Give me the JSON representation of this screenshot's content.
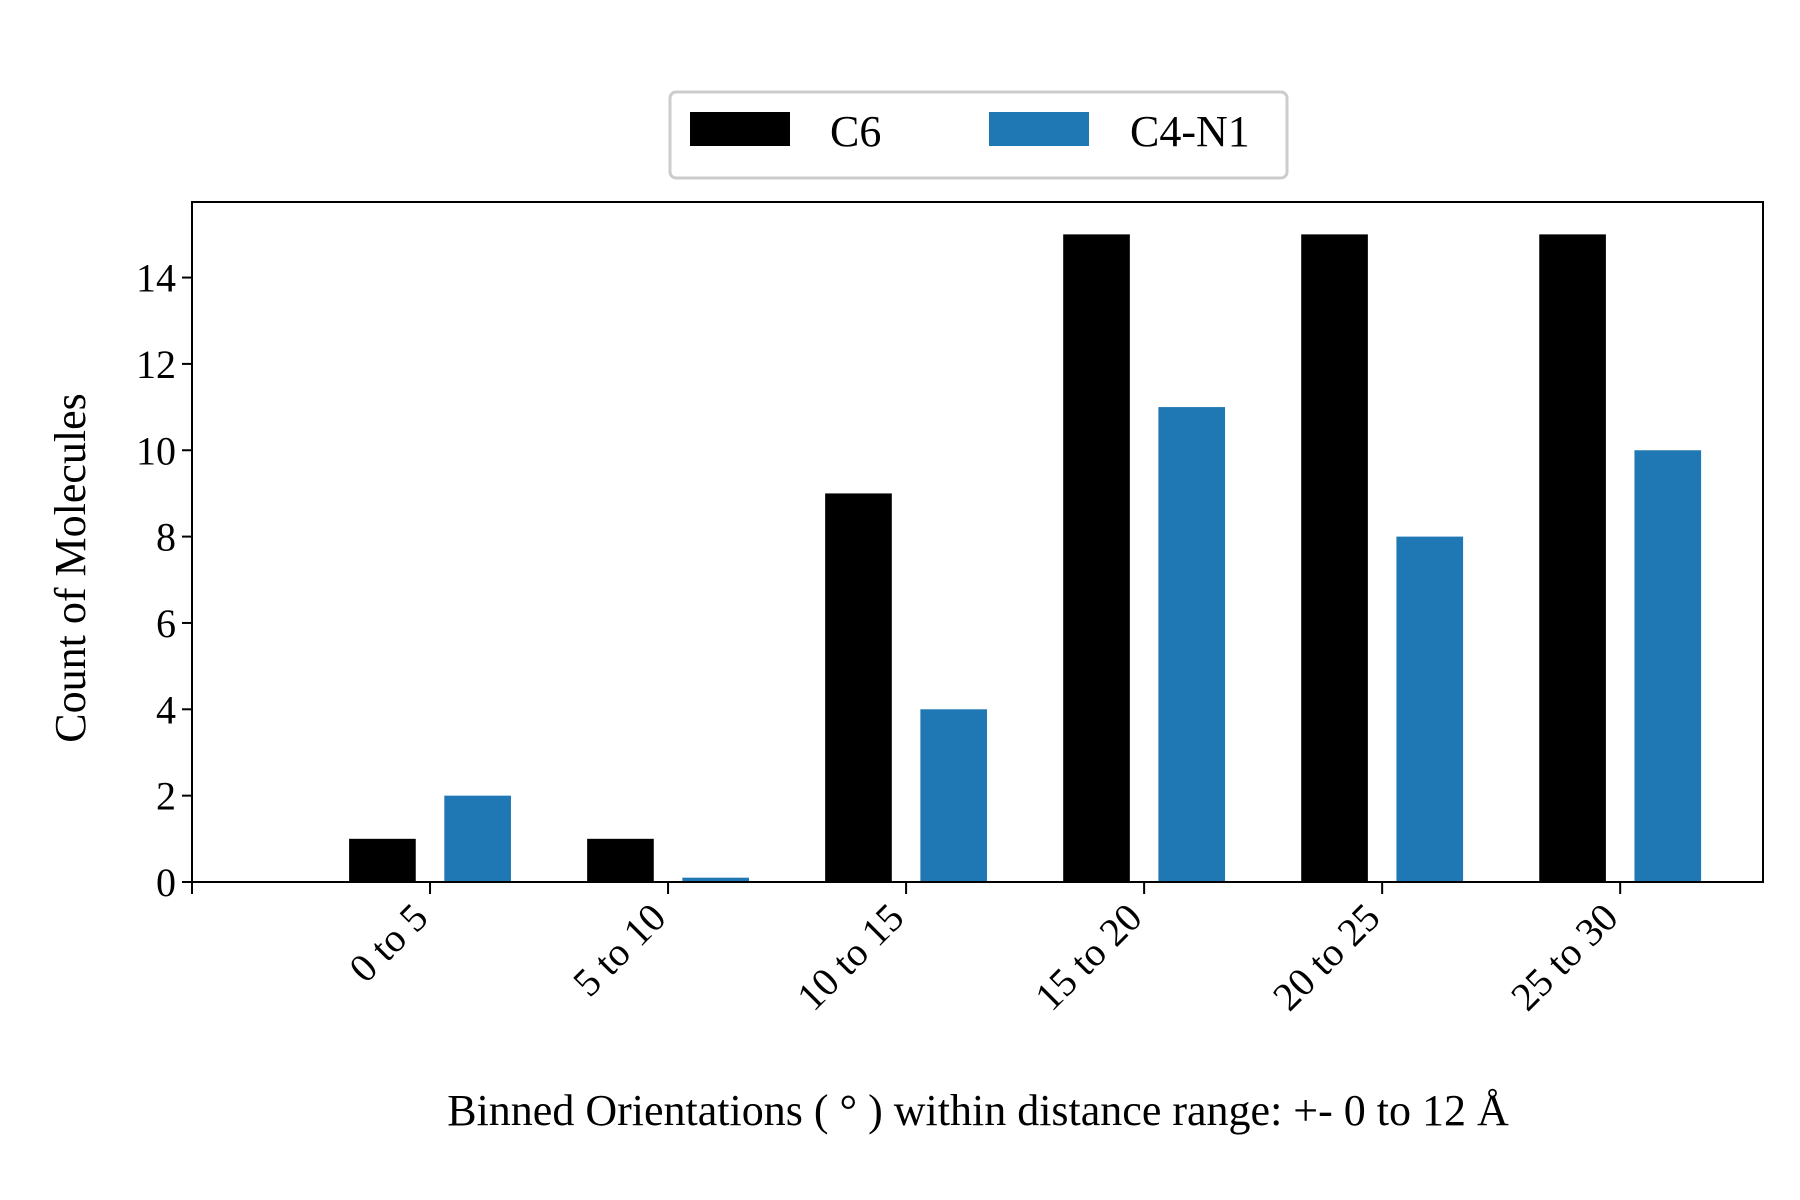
{
  "chart_data": {
    "type": "bar",
    "categories": [
      "0 to 5",
      "5 to 10",
      "10 to 15",
      "15 to 20",
      "20 to 25",
      "25 to 30"
    ],
    "series": [
      {
        "name": "C6",
        "color": "#000000",
        "values": [
          1,
          1,
          9,
          15,
          15,
          15
        ]
      },
      {
        "name": "C4-N1",
        "color": "#1f77b4",
        "values": [
          2,
          0.1,
          4,
          11,
          8,
          10
        ]
      }
    ],
    "xlabel": "Binned Orientations ( ° ) within distance range:  +- 0 to 12 Å",
    "ylabel": "Count of Molecules",
    "ylim": [
      0,
      15.75
    ],
    "yticks": [
      0,
      2,
      4,
      6,
      8,
      10,
      12,
      14
    ],
    "xlim": [
      -1,
      5.6
    ],
    "grid": false,
    "legend": {
      "placement": "top-center, above plot",
      "ncol": 2
    }
  }
}
